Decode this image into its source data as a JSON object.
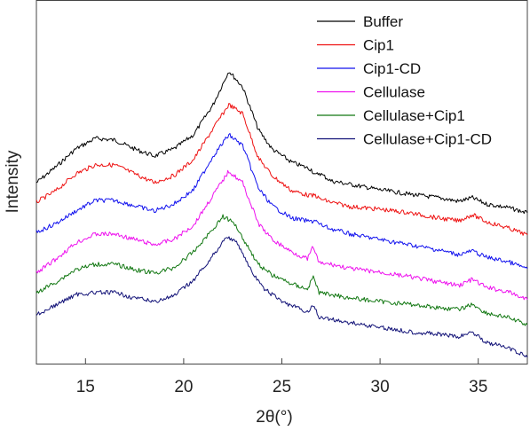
{
  "chart_data": {
    "type": "line",
    "xlabel": "2θ(°)",
    "ylabel": "Intensity",
    "xlim": [
      12.5,
      37.5
    ],
    "xticks": [
      15,
      20,
      25,
      30,
      35
    ],
    "y_tick_labels": "none",
    "grid": false,
    "legend_position": "top-right",
    "series": [
      {
        "name": "Buffer",
        "color": "#000000",
        "points": [
          [
            12.5,
            206
          ],
          [
            13.5,
            188
          ],
          [
            14.5,
            168
          ],
          [
            15.5,
            156
          ],
          [
            16.5,
            158
          ],
          [
            17.5,
            168
          ],
          [
            18.5,
            176
          ],
          [
            19.5,
            168
          ],
          [
            20.5,
            152
          ],
          [
            21.5,
            118
          ],
          [
            22.3,
            80
          ],
          [
            23.0,
            98
          ],
          [
            23.8,
            146
          ],
          [
            24.5,
            168
          ],
          [
            25.5,
            183
          ],
          [
            26.5,
            191
          ],
          [
            26.7,
            198
          ],
          [
            26.9,
            195
          ],
          [
            27.5,
            204
          ],
          [
            28.5,
            208
          ],
          [
            30.0,
            214
          ],
          [
            31.5,
            219
          ],
          [
            33.0,
            223
          ],
          [
            34.0,
            227
          ],
          [
            34.7,
            223
          ],
          [
            35.4,
            230
          ],
          [
            36.5,
            234
          ],
          [
            37.5,
            240
          ]
        ]
      },
      {
        "name": "Cip1",
        "color": "#ee1111",
        "points": [
          [
            12.5,
            228
          ],
          [
            13.5,
            215
          ],
          [
            14.5,
            196
          ],
          [
            15.5,
            186
          ],
          [
            16.5,
            186
          ],
          [
            17.5,
            196
          ],
          [
            18.5,
            206
          ],
          [
            19.5,
            198
          ],
          [
            20.5,
            180
          ],
          [
            21.5,
            145
          ],
          [
            22.3,
            118
          ],
          [
            23.0,
            128
          ],
          [
            23.8,
            178
          ],
          [
            24.5,
            198
          ],
          [
            25.5,
            215
          ],
          [
            26.5,
            221
          ],
          [
            26.7,
            220
          ],
          [
            26.9,
            224
          ],
          [
            27.5,
            228
          ],
          [
            28.5,
            233
          ],
          [
            30.0,
            236
          ],
          [
            31.5,
            240
          ],
          [
            33.0,
            246
          ],
          [
            34.0,
            249
          ],
          [
            34.7,
            242
          ],
          [
            35.4,
            250
          ],
          [
            36.5,
            257
          ],
          [
            37.5,
            265
          ]
        ]
      },
      {
        "name": "Cip1-CD",
        "color": "#1111ee",
        "points": [
          [
            12.5,
            262
          ],
          [
            13.5,
            252
          ],
          [
            14.5,
            238
          ],
          [
            15.5,
            226
          ],
          [
            16.5,
            226
          ],
          [
            17.5,
            232
          ],
          [
            18.5,
            238
          ],
          [
            19.5,
            230
          ],
          [
            20.5,
            214
          ],
          [
            21.5,
            176
          ],
          [
            22.3,
            152
          ],
          [
            23.0,
            164
          ],
          [
            23.8,
            212
          ],
          [
            24.5,
            232
          ],
          [
            25.5,
            246
          ],
          [
            26.5,
            250
          ],
          [
            26.7,
            248
          ],
          [
            26.9,
            253
          ],
          [
            27.5,
            258
          ],
          [
            28.5,
            264
          ],
          [
            30.0,
            270
          ],
          [
            31.5,
            276
          ],
          [
            33.0,
            282
          ],
          [
            34.0,
            287
          ],
          [
            34.7,
            283
          ],
          [
            35.4,
            290
          ],
          [
            36.5,
            295
          ],
          [
            37.5,
            303
          ]
        ]
      },
      {
        "name": "Cellulase",
        "color": "#ee11ee",
        "points": [
          [
            12.5,
            308
          ],
          [
            13.5,
            292
          ],
          [
            14.5,
            274
          ],
          [
            15.5,
            264
          ],
          [
            16.5,
            264
          ],
          [
            17.5,
            270
          ],
          [
            18.5,
            276
          ],
          [
            19.5,
            270
          ],
          [
            20.5,
            254
          ],
          [
            21.5,
            220
          ],
          [
            22.3,
            193
          ],
          [
            23.0,
            206
          ],
          [
            23.8,
            252
          ],
          [
            24.5,
            270
          ],
          [
            25.5,
            284
          ],
          [
            26.3,
            292
          ],
          [
            26.6,
            278
          ],
          [
            26.9,
            297
          ],
          [
            27.5,
            298
          ],
          [
            28.5,
            303
          ],
          [
            30.0,
            307
          ],
          [
            31.5,
            312
          ],
          [
            33.0,
            318
          ],
          [
            34.0,
            322
          ],
          [
            34.7,
            315
          ],
          [
            35.4,
            324
          ],
          [
            36.5,
            329
          ],
          [
            37.5,
            338
          ]
        ]
      },
      {
        "name": "Cellulase+Cip1",
        "color": "#117711",
        "points": [
          [
            12.5,
            330
          ],
          [
            13.5,
            318
          ],
          [
            14.5,
            304
          ],
          [
            15.5,
            298
          ],
          [
            16.5,
            298
          ],
          [
            17.5,
            304
          ],
          [
            18.5,
            308
          ],
          [
            19.5,
            302
          ],
          [
            20.5,
            284
          ],
          [
            21.5,
            258
          ],
          [
            22.0,
            244
          ],
          [
            22.6,
            252
          ],
          [
            23.0,
            268
          ],
          [
            23.8,
            298
          ],
          [
            24.5,
            310
          ],
          [
            25.5,
            320
          ],
          [
            26.3,
            326
          ],
          [
            26.6,
            312
          ],
          [
            26.9,
            330
          ],
          [
            27.5,
            332
          ],
          [
            28.5,
            336
          ],
          [
            30.0,
            340
          ],
          [
            31.5,
            343
          ],
          [
            33.0,
            347
          ],
          [
            34.0,
            349
          ],
          [
            34.7,
            343
          ],
          [
            35.4,
            353
          ],
          [
            36.5,
            358
          ],
          [
            37.5,
            366
          ]
        ]
      },
      {
        "name": "Cellulase+Cip1-CD",
        "color": "#111177",
        "points": [
          [
            12.5,
            355
          ],
          [
            13.5,
            344
          ],
          [
            14.5,
            332
          ],
          [
            15.5,
            330
          ],
          [
            16.5,
            330
          ],
          [
            17.5,
            336
          ],
          [
            18.5,
            340
          ],
          [
            19.5,
            334
          ],
          [
            20.5,
            316
          ],
          [
            21.5,
            288
          ],
          [
            22.2,
            266
          ],
          [
            22.8,
            276
          ],
          [
            23.4,
            304
          ],
          [
            24.0,
            324
          ],
          [
            25.0,
            340
          ],
          [
            26.3,
            352
          ],
          [
            26.6,
            344
          ],
          [
            26.9,
            358
          ],
          [
            27.5,
            360
          ],
          [
            28.5,
            364
          ],
          [
            30.0,
            369
          ],
          [
            31.5,
            374
          ],
          [
            33.0,
            377
          ],
          [
            34.0,
            380
          ],
          [
            34.7,
            374
          ],
          [
            35.4,
            386
          ],
          [
            36.5,
            392
          ],
          [
            37.5,
            403
          ]
        ]
      }
    ]
  }
}
